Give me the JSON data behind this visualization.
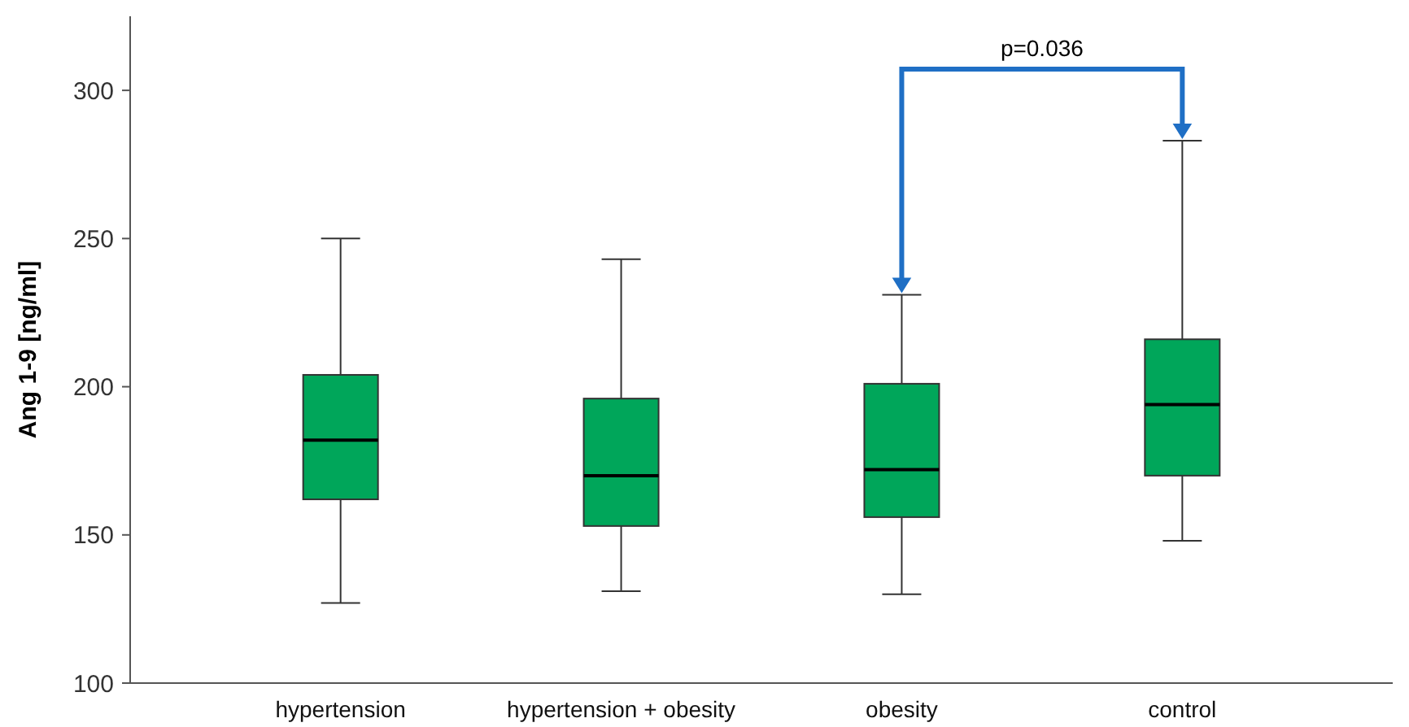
{
  "chart_data": {
    "type": "box",
    "ylabel": "Ang 1-9 [ng/ml]",
    "categories": [
      "hypertension",
      "hypertension + obesity",
      "obesity",
      "control"
    ],
    "boxes": [
      {
        "low": 127,
        "q1": 162,
        "median": 182,
        "q3": 204,
        "high": 250
      },
      {
        "low": 131,
        "q1": 153,
        "median": 170,
        "q3": 196,
        "high": 243
      },
      {
        "low": 130,
        "q1": 156,
        "median": 172,
        "q3": 201,
        "high": 231
      },
      {
        "low": 148,
        "q1": 170,
        "median": 194,
        "q3": 216,
        "high": 283
      }
    ],
    "color": "#00a65a",
    "ylim": [
      100,
      325
    ],
    "yticks": [
      100,
      150,
      200,
      250,
      300
    ],
    "grid": false,
    "annotations": [
      "p=0.036"
    ]
  }
}
